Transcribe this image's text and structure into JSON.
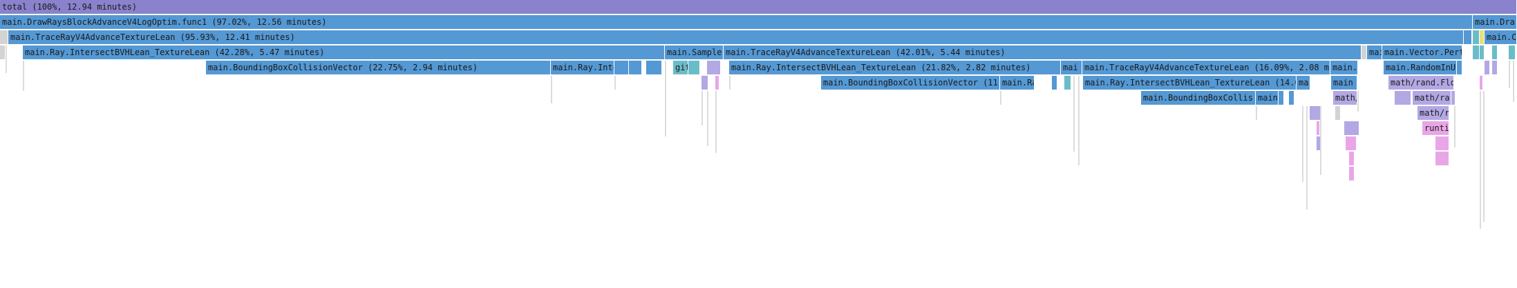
{
  "colors": {
    "total": "#8a82cc",
    "blue": "#5498d4",
    "teal": "#6bbcc9",
    "lilac": "#b3a8e4",
    "pink": "#e9a6e6",
    "grey": "#d3d3d3",
    "yellow": "#e8e07a"
  },
  "frames": [
    {
      "label": "total (100%, 12.94 minutes)",
      "c": "total"
    },
    {
      "label": "main.DrawRaysBlockAdvanceV4LogOptim.func1 (97.02%, 12.56 minutes)",
      "c": "blue"
    },
    {
      "label": "main.Dra",
      "c": "blue"
    },
    {
      "label": "",
      "c": "grey"
    },
    {
      "label": "main.TraceRayV4AdvanceTextureLean (95.93%, 12.41 minutes)",
      "c": "blue"
    },
    {
      "label": "",
      "c": "blue"
    },
    {
      "label": "",
      "c": "teal"
    },
    {
      "label": "",
      "c": "yellow"
    },
    {
      "label": "main.C",
      "c": "blue"
    },
    {
      "label": "",
      "c": "grey"
    },
    {
      "label": "main.Ray.IntersectBVHLean_TextureLean (42.28%, 5.47 minutes)",
      "c": "blue"
    },
    {
      "label": "main.Sampler",
      "c": "blue"
    },
    {
      "label": "main.TraceRayV4AdvanceTextureLean (42.01%, 5.44 minutes)",
      "c": "blue"
    },
    {
      "label": "",
      "c": "grey"
    },
    {
      "label": "mai",
      "c": "blue"
    },
    {
      "label": "main.Vector.Pertu",
      "c": "blue"
    },
    {
      "label": "",
      "c": "teal"
    },
    {
      "label": "",
      "c": "teal"
    },
    {
      "label": "",
      "c": "teal"
    },
    {
      "label": "",
      "c": "teal"
    },
    {
      "label": "main.BoundingBoxCollisionVector (22.75%, 2.94 minutes)",
      "c": "blue"
    },
    {
      "label": "main.Ray.Inte",
      "c": "blue"
    },
    {
      "label": "",
      "c": "blue"
    },
    {
      "label": "",
      "c": "blue"
    },
    {
      "label": "",
      "c": "blue"
    },
    {
      "label": "git",
      "c": "teal"
    },
    {
      "label": "",
      "c": "teal"
    },
    {
      "label": "",
      "c": "lilac"
    },
    {
      "label": "main.Ray.IntersectBVHLean_TextureLean (21.82%, 2.82 minutes)",
      "c": "blue"
    },
    {
      "label": "mai",
      "c": "blue"
    },
    {
      "label": "main.TraceRayV4AdvanceTextureLean (16.09%, 2.08 min",
      "c": "blue"
    },
    {
      "label": "main.V",
      "c": "blue"
    },
    {
      "label": "main.RandomInUn",
      "c": "blue"
    },
    {
      "label": "",
      "c": "blue"
    },
    {
      "label": "",
      "c": "lilac"
    },
    {
      "label": "",
      "c": "lilac"
    },
    {
      "label": "main.BoundingBoxCollisionVector (11.7",
      "c": "blue"
    },
    {
      "label": "main.Ra",
      "c": "blue"
    },
    {
      "label": "",
      "c": "blue"
    },
    {
      "label": "",
      "c": "teal"
    },
    {
      "label": "main.Ray.IntersectBVHLean_TextureLean (14.03",
      "c": "blue"
    },
    {
      "label": "mai",
      "c": "blue"
    },
    {
      "label": "main",
      "c": "blue"
    },
    {
      "label": "math/rand.Floa",
      "c": "lilac"
    },
    {
      "label": "",
      "c": "pink"
    },
    {
      "label": "",
      "c": "lilac"
    },
    {
      "label": "",
      "c": "pink"
    },
    {
      "label": "main.BoundingBoxCollis",
      "c": "blue"
    },
    {
      "label": "main",
      "c": "blue"
    },
    {
      "label": "",
      "c": "blue"
    },
    {
      "label": "",
      "c": "blue"
    },
    {
      "label": "math/",
      "c": "lilac"
    },
    {
      "label": "",
      "c": "lilac"
    },
    {
      "label": "math/ra",
      "c": "lilac"
    },
    {
      "label": "",
      "c": "lilac"
    },
    {
      "label": "math/ra",
      "c": "lilac"
    },
    {
      "label": "",
      "c": "lilac"
    },
    {
      "label": "",
      "c": "grey"
    },
    {
      "label": "runti",
      "c": "pink"
    },
    {
      "label": "",
      "c": "lilac"
    },
    {
      "label": "",
      "c": "pink"
    },
    {
      "label": "",
      "c": "pink"
    },
    {
      "label": "",
      "c": "pink"
    },
    {
      "label": "",
      "c": "lilac"
    },
    {
      "label": "",
      "c": "pink"
    },
    {
      "label": "",
      "c": "pink"
    },
    {
      "label": "",
      "c": "pink"
    }
  ]
}
